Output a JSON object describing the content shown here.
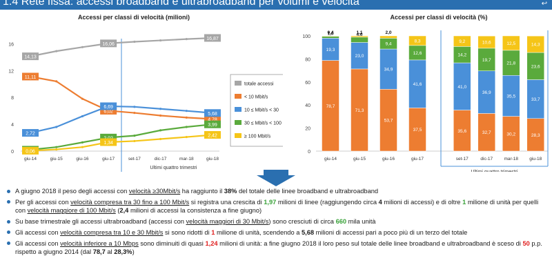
{
  "header": {
    "title": "1.4 Rete fissa: accessi broadband e ultrabroadband per volumi e velocità"
  },
  "chart_data": [
    {
      "type": "line",
      "title": "Accessi per classi di velocità (milioni)",
      "categories": [
        "giu-14",
        "giu-15",
        "giu-16",
        "giu-17",
        "set-17",
        "dic-17",
        "mar-18",
        "giu-18"
      ],
      "xnote": "Ultimi quattro trimestri",
      "yticks": [
        "0",
        "4",
        "8",
        "12",
        "16"
      ],
      "ylim": [
        0,
        18
      ],
      "series": [
        {
          "name": "totale accessi",
          "color": "#a6a6a6",
          "values": [
            14.13,
            14.9,
            15.5,
            16.06,
            16.3,
            16.5,
            16.7,
            16.87
          ],
          "labels": [
            "14,13",
            "",
            "",
            "16,06",
            "",
            "",
            "",
            "16,87"
          ]
        },
        {
          "name": "< 10 Mbit/s",
          "color": "#ed7d31",
          "values": [
            11.11,
            10.4,
            7.8,
            6.02,
            5.7,
            5.3,
            5.0,
            4.78
          ],
          "labels": [
            "11,11",
            "",
            "",
            "6,02",
            "",
            "",
            "",
            "4,78"
          ]
        },
        {
          "name": "10 ≤ Mbit/s < 30",
          "color": "#4a90d9",
          "values": [
            2.72,
            3.6,
            5.2,
            6.69,
            6.6,
            6.3,
            6.0,
            5.68
          ],
          "labels": [
            "2,72",
            "",
            "",
            "6,69",
            "",
            "",
            "",
            "5,68"
          ]
        },
        {
          "name": "30 ≤ Mbit/s < 100",
          "color": "#5aaa3c",
          "values": [
            0.21,
            0.6,
            1.3,
            2.02,
            2.3,
            3.1,
            3.6,
            3.99
          ],
          "labels": [
            "0,21",
            "",
            "",
            "2,02",
            "",
            "",
            "",
            "3,99"
          ]
        },
        {
          "name": "≥ 100 Mbit/s",
          "color": "#f5c518",
          "values": [
            0.06,
            0.25,
            0.6,
            1.34,
            1.5,
            1.8,
            2.1,
            2.42
          ],
          "labels": [
            "0,06",
            "",
            "",
            "1,34",
            "",
            "",
            "",
            "2,42"
          ]
        }
      ]
    },
    {
      "type": "bar",
      "stacked": true,
      "title": "Accessi per classi di velocità (%)",
      "categories": [
        "giu-14",
        "giu-15",
        "giu-16",
        "giu-17",
        "set-17",
        "dic-17",
        "mar-18",
        "giu-18"
      ],
      "xnote": "Ultimi quattro trimestri",
      "yticks": [
        "0",
        "20",
        "40",
        "60",
        "80",
        "100"
      ],
      "ylim": [
        0,
        100
      ],
      "series": [
        {
          "name": "< 10 Mbit/s",
          "color": "#ed7d31",
          "values": [
            78.7,
            71.3,
            53.7,
            37.5,
            35.6,
            32.7,
            30.2,
            28.3
          ],
          "labels": [
            "78,7",
            "71,3",
            "53,7",
            "37,5",
            "35,6",
            "32,7",
            "30,2",
            "28,3"
          ]
        },
        {
          "name": "10 ≤ Mbit/s < 30",
          "color": "#4a90d9",
          "values": [
            19.3,
            23.0,
            34.9,
            41.6,
            41.0,
            36.9,
            35.5,
            33.7
          ],
          "labels": [
            "19,3",
            "23,0",
            "34,9",
            "41,6",
            "41,0",
            "36,9",
            "35,5",
            "33,7"
          ]
        },
        {
          "name": "30 ≤ Mbit/s < 100",
          "color": "#5aaa3c",
          "values": [
            1.6,
            4.6,
            9.4,
            12.6,
            14.2,
            19.7,
            21.8,
            23.6
          ],
          "labels": [
            "1,6",
            "4,6",
            "9,4",
            "12,6",
            "14,2",
            "19,7",
            "21,8",
            "23,6"
          ]
        },
        {
          "name": "≥ 100 Mbit/s",
          "color": "#f5c518",
          "values": [
            0.4,
            1.1,
            2.0,
            8.3,
            9.2,
            10.6,
            12.5,
            14.3
          ],
          "labels": [
            "0,4",
            "1,1",
            "2,0",
            "8,3",
            "9,2",
            "10,6",
            "12,5",
            "14,3"
          ]
        }
      ]
    }
  ],
  "bullets": [
    [
      {
        "t": "A giugno 2018 il peso degli accessi con "
      },
      {
        "t": "velocità ≥30Mbit/s",
        "c": "u"
      },
      {
        "t": " ha raggiunto il "
      },
      {
        "t": "38%",
        "c": "b"
      },
      {
        "t": " del totale delle linee broadband e ultrabroadband"
      }
    ],
    [
      {
        "t": "Per gli accessi con "
      },
      {
        "t": "velocità compresa tra 30 fino a 100 Mbit/s",
        "c": "u"
      },
      {
        "t": " si registra una crescita di "
      },
      {
        "t": "1,97",
        "c": "g"
      },
      {
        "t": " milioni di linee (raggiungendo circa "
      },
      {
        "t": "4",
        "c": "b"
      },
      {
        "t": " milioni di accessi) e di oltre "
      },
      {
        "t": "1",
        "c": "g"
      },
      {
        "t": " milione di unità per quelli con "
      },
      {
        "t": "velocità maggiore di 100 Mbit/s",
        "c": "u"
      },
      {
        "t": " ("
      },
      {
        "t": "2,4",
        "c": "b"
      },
      {
        "t": " milioni di accessi la consistenza a fine giugno)"
      }
    ],
    [
      {
        "t": "Su base trimestrale gli accessi ultrabroadband (accessi con "
      },
      {
        "t": "velocità maggiori di 30 Mbit/s",
        "c": "u"
      },
      {
        "t": ") sono cresciuti di circa "
      },
      {
        "t": "660",
        "c": "g"
      },
      {
        "t": " mila unità"
      }
    ],
    [
      {
        "t": "Gli accessi con "
      },
      {
        "t": "velocità compresa tra 10 e 30 Mbit/s",
        "c": "u"
      },
      {
        "t": " si sono ridotti di "
      },
      {
        "t": "1",
        "c": "r"
      },
      {
        "t": " milione di unità, scendendo a "
      },
      {
        "t": "5,68",
        "c": "b"
      },
      {
        "t": " milioni di accessi pari a poco più di un terzo del totale"
      }
    ],
    [
      {
        "t": "Gli accessi con "
      },
      {
        "t": "velocità inferiore a 10 Mbps",
        "c": "u"
      },
      {
        "t": " sono diminuiti di quasi "
      },
      {
        "t": "1,24",
        "c": "r"
      },
      {
        "t": " milioni di unità: a fine giugno 2018 il loro peso sul totale delle linee broadband e ultrabroadband è sceso di "
      },
      {
        "t": "50",
        "c": "r"
      },
      {
        "t": " p.p. rispetto a giugno 2014 (dal "
      },
      {
        "t": "78,7",
        "c": "b"
      },
      {
        "t": " al "
      },
      {
        "t": "28,3%",
        "c": "b"
      },
      {
        "t": ")"
      }
    ]
  ]
}
